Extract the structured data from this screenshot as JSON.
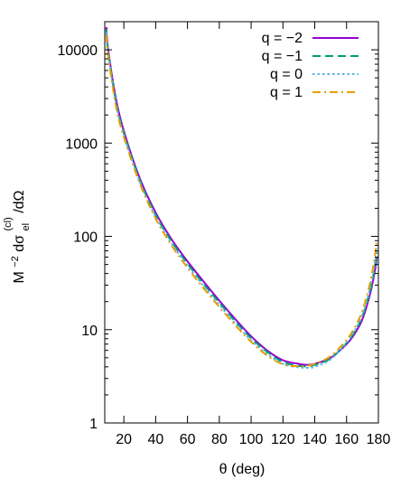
{
  "chart_data": {
    "type": "line",
    "xlabel": "θ (deg)",
    "ylabel": {
      "base": "M",
      "base_sup": "−2",
      "mid": " dσ",
      "sub": "el",
      "sup": "(cl)",
      "end": " /dΩ"
    },
    "xlim": [
      8,
      180
    ],
    "ylim": [
      1,
      20000
    ],
    "y_scale": "log",
    "grid": false,
    "legend_position": "top-right",
    "x_ticks": [
      20,
      40,
      60,
      80,
      100,
      120,
      140,
      160,
      180
    ],
    "x_tick_labels": [
      "20",
      "40",
      "60",
      "80",
      "100",
      "120",
      "140",
      "160",
      "180"
    ],
    "y_ticks": [
      1,
      10,
      100,
      1000,
      10000
    ],
    "y_tick_labels": [
      "1",
      "10",
      "100",
      "1000",
      "10000"
    ],
    "series": [
      {
        "name": "q = −2",
        "color": "#9400d3",
        "dash": "solid",
        "x": [
          9,
          10,
          15,
          20,
          30,
          40,
          50,
          60,
          70,
          80,
          90,
          100,
          110,
          120,
          130,
          135,
          140,
          150,
          160,
          165,
          170,
          175,
          178,
          179
        ],
        "y": [
          17500,
          10500,
          3000,
          1350,
          420,
          180,
          93,
          54,
          33,
          20.5,
          13,
          8.5,
          6,
          4.7,
          4.3,
          4.2,
          4.3,
          5,
          7,
          9,
          13,
          25,
          45,
          60
        ]
      },
      {
        "name": "q = −1",
        "color": "#009e73",
        "dash": "dashed",
        "x": [
          9,
          10,
          15,
          20,
          30,
          40,
          50,
          60,
          70,
          80,
          90,
          100,
          110,
          120,
          130,
          135,
          140,
          150,
          160,
          165,
          170,
          175,
          178,
          179
        ],
        "y": [
          16500,
          10000,
          2800,
          1280,
          400,
          170,
          88,
          51,
          31,
          19.5,
          12.3,
          8.1,
          5.8,
          4.5,
          4.1,
          4.05,
          4.2,
          4.9,
          7.2,
          9.5,
          14,
          27,
          50,
          68
        ]
      },
      {
        "name": "q = 0",
        "color": "#56b4e9",
        "dash": "dotted",
        "x": [
          9,
          10,
          15,
          20,
          30,
          40,
          50,
          60,
          70,
          80,
          90,
          100,
          110,
          120,
          130,
          135,
          140,
          150,
          160,
          165,
          170,
          175,
          178,
          179
        ],
        "y": [
          15500,
          9500,
          2650,
          1220,
          385,
          162,
          84,
          48.5,
          29.5,
          18.5,
          11.7,
          7.7,
          5.5,
          4.3,
          3.95,
          3.9,
          4.0,
          4.8,
          7.3,
          9.8,
          14.5,
          29,
          55,
          75
        ]
      },
      {
        "name": "q = 1",
        "color": "#e69f00",
        "dash": "dashdot",
        "x": [
          9,
          10,
          15,
          20,
          30,
          40,
          50,
          60,
          70,
          80,
          90,
          100,
          110,
          120,
          130,
          135,
          140,
          150,
          160,
          165,
          170,
          175,
          178,
          179
        ],
        "y": [
          14500,
          9000,
          2500,
          1160,
          370,
          155,
          80,
          46,
          28,
          17.5,
          11.2,
          7.4,
          5.3,
          4.25,
          4.05,
          4.1,
          4.3,
          5.2,
          7.8,
          10.5,
          16,
          33,
          65,
          90
        ]
      }
    ]
  }
}
